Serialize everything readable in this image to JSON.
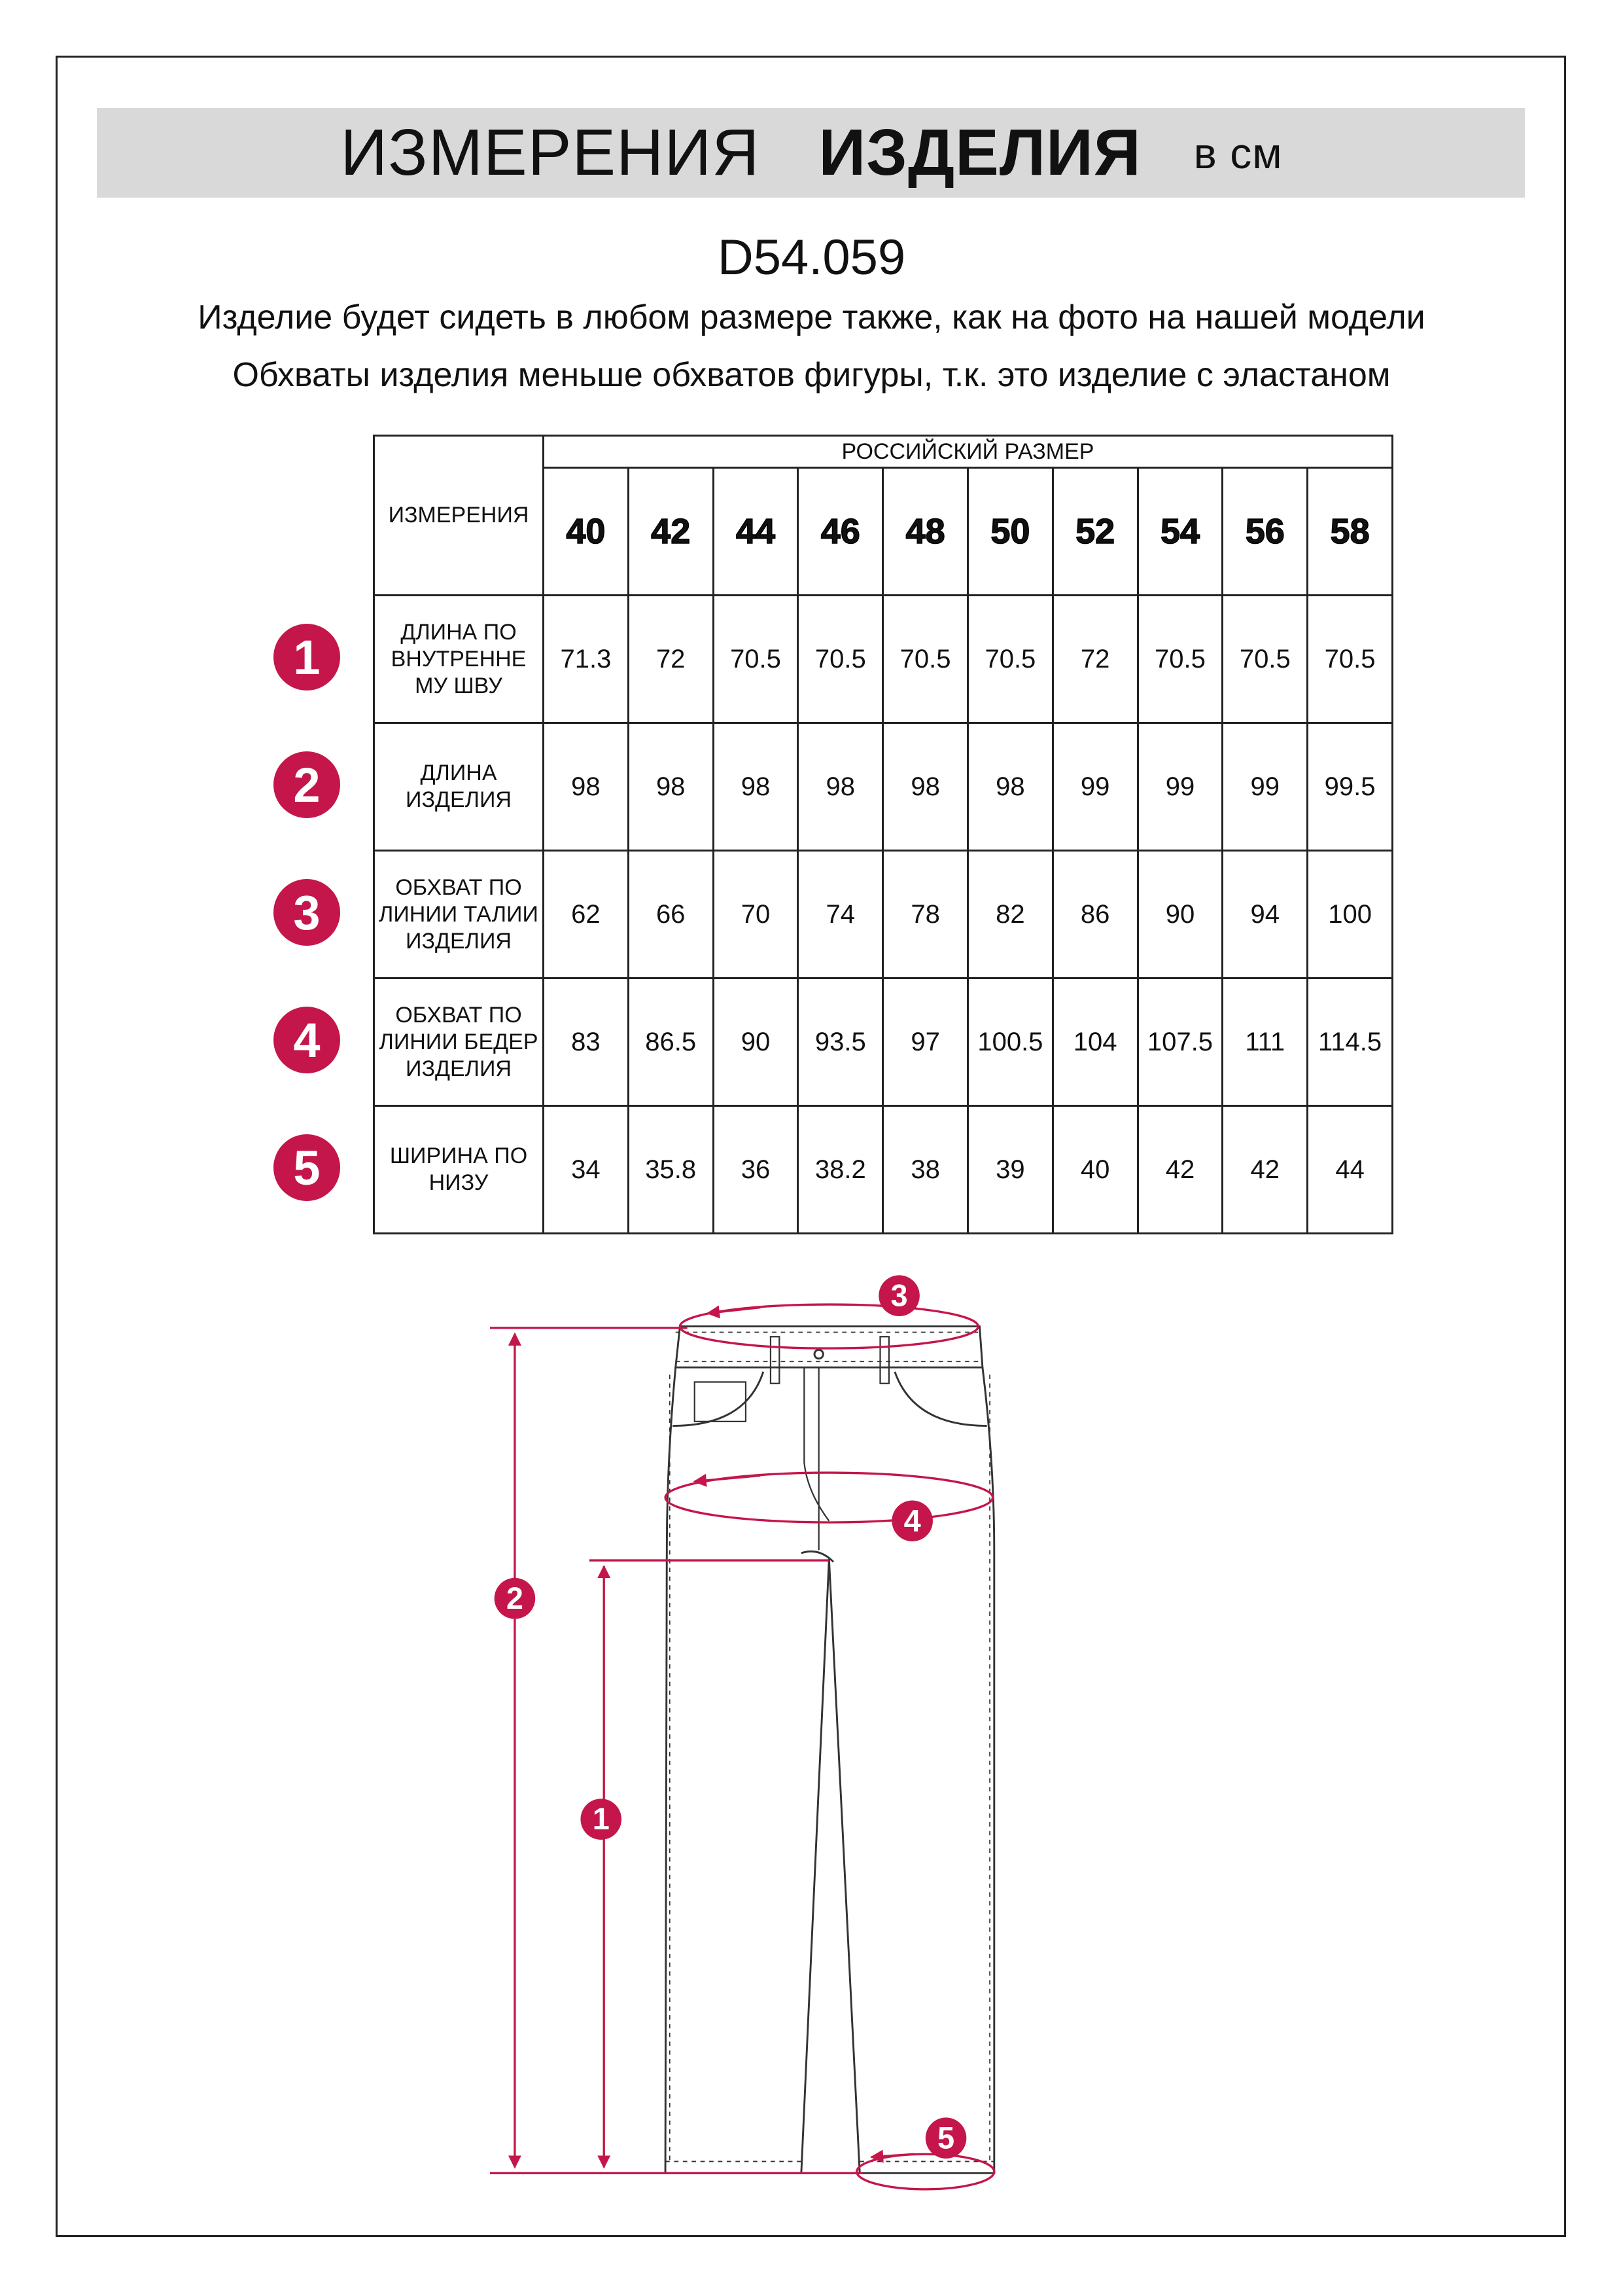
{
  "header": {
    "title_regular": "ИЗМЕРЕНИЯ",
    "title_bold": "ИЗДЕЛИЯ",
    "unit": "в см"
  },
  "product_code": "D54.059",
  "notes": [
    "Изделие будет сидеть в любом размере также, как на фото на нашей модели",
    "Обхваты изделия меньше обхватов фигуры, т.к. это изделие с эластаном"
  ],
  "table": {
    "measure_header": "ИЗМЕРЕНИЯ",
    "size_header": "РОССИЙСКИЙ РАЗМЕР",
    "sizes": [
      "40",
      "42",
      "44",
      "46",
      "48",
      "50",
      "52",
      "54",
      "56",
      "58"
    ],
    "rows": [
      {
        "num": "1",
        "label": "ДЛИНА ПО ВНУТРЕННЕ МУ ШВУ",
        "values": [
          "71.3",
          "72",
          "70.5",
          "70.5",
          "70.5",
          "70.5",
          "72",
          "70.5",
          "70.5",
          "70.5"
        ]
      },
      {
        "num": "2",
        "label": "ДЛИНА ИЗДЕЛИЯ",
        "values": [
          "98",
          "98",
          "98",
          "98",
          "98",
          "98",
          "99",
          "99",
          "99",
          "99.5"
        ]
      },
      {
        "num": "3",
        "label": "ОБХВАТ ПО ЛИНИИ ТАЛИИ ИЗДЕЛИЯ",
        "values": [
          "62",
          "66",
          "70",
          "74",
          "78",
          "82",
          "86",
          "90",
          "94",
          "100"
        ]
      },
      {
        "num": "4",
        "label": "ОБХВАТ ПО ЛИНИИ БЕДЕР ИЗДЕЛИЯ",
        "values": [
          "83",
          "86.5",
          "90",
          "93.5",
          "97",
          "100.5",
          "104",
          "107.5",
          "111",
          "114.5"
        ]
      },
      {
        "num": "5",
        "label": "ШИРИНА ПО НИЗУ",
        "values": [
          "34",
          "35.8",
          "36",
          "38.2",
          "38",
          "39",
          "40",
          "42",
          "42",
          "44"
        ]
      }
    ]
  },
  "diagram": {
    "markers": [
      "1",
      "2",
      "3",
      "4",
      "5"
    ]
  },
  "colors": {
    "accent": "#c4164a",
    "band": "#d9d9d9",
    "line": "#222222"
  }
}
